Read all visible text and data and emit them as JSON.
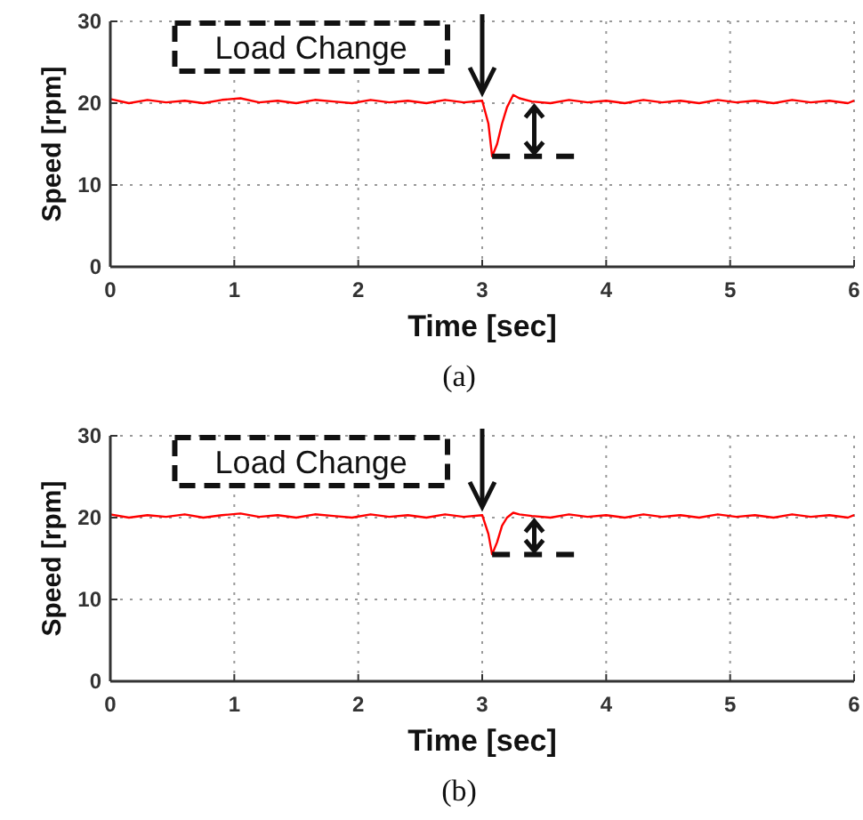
{
  "chart_data": [
    {
      "type": "line",
      "xlabel": "Time [sec]",
      "ylabel": "Speed [rpm]",
      "annotations": [
        "Load Change",
        "(a)"
      ],
      "xlim": [
        0,
        6
      ],
      "xticks": [
        0,
        1,
        2,
        3,
        4,
        5,
        6
      ],
      "ylim": [
        0,
        30
      ],
      "yticks": [
        0,
        10,
        20,
        30
      ],
      "grid": true,
      "series": [
        {
          "color": "#ff0000",
          "x": [
            0,
            0.15,
            0.3,
            0.45,
            0.6,
            0.75,
            0.9,
            1.05,
            1.2,
            1.35,
            1.5,
            1.65,
            1.8,
            1.95,
            2.1,
            2.25,
            2.4,
            2.55,
            2.7,
            2.85,
            3.0,
            3.05,
            3.08,
            3.12,
            3.16,
            3.2,
            3.25,
            3.3,
            3.4,
            3.55,
            3.7,
            3.85,
            4.0,
            4.15,
            4.3,
            4.45,
            4.6,
            4.75,
            4.9,
            5.05,
            5.2,
            5.35,
            5.5,
            5.65,
            5.8,
            5.95,
            6.0
          ],
          "values": [
            20.5,
            20.0,
            20.4,
            20.1,
            20.3,
            20.0,
            20.4,
            20.6,
            20.1,
            20.3,
            20.0,
            20.4,
            20.2,
            20.0,
            20.4,
            20.1,
            20.3,
            20.0,
            20.4,
            20.1,
            20.3,
            17.5,
            13.5,
            15.0,
            17.5,
            19.5,
            21.0,
            20.6,
            20.2,
            20.0,
            20.4,
            20.1,
            20.3,
            20.0,
            20.4,
            20.1,
            20.3,
            20.0,
            20.4,
            20.1,
            20.3,
            20.0,
            20.4,
            20.1,
            20.3,
            20.0,
            20.3
          ]
        }
      ]
    },
    {
      "type": "line",
      "xlabel": "Time [sec]",
      "ylabel": "Speed [rpm]",
      "annotations": [
        "Load Change",
        "(b)"
      ],
      "xlim": [
        0,
        6
      ],
      "xticks": [
        0,
        1,
        2,
        3,
        4,
        5,
        6
      ],
      "ylim": [
        0,
        30
      ],
      "yticks": [
        0,
        10,
        20,
        30
      ],
      "grid": true,
      "series": [
        {
          "color": "#ff0000",
          "x": [
            0,
            0.15,
            0.3,
            0.45,
            0.6,
            0.75,
            0.9,
            1.05,
            1.2,
            1.35,
            1.5,
            1.65,
            1.8,
            1.95,
            2.1,
            2.25,
            2.4,
            2.55,
            2.7,
            2.85,
            3.0,
            3.05,
            3.08,
            3.12,
            3.16,
            3.2,
            3.25,
            3.3,
            3.4,
            3.55,
            3.7,
            3.85,
            4.0,
            4.15,
            4.3,
            4.45,
            4.6,
            4.75,
            4.9,
            5.05,
            5.2,
            5.35,
            5.5,
            5.65,
            5.8,
            5.95,
            6.0
          ],
          "values": [
            20.4,
            20.0,
            20.3,
            20.1,
            20.4,
            20.0,
            20.3,
            20.5,
            20.1,
            20.3,
            20.0,
            20.4,
            20.2,
            20.0,
            20.4,
            20.1,
            20.3,
            20.0,
            20.4,
            20.1,
            20.3,
            18.0,
            15.5,
            17.0,
            19.0,
            20.0,
            20.6,
            20.4,
            20.2,
            20.0,
            20.4,
            20.1,
            20.3,
            20.0,
            20.4,
            20.1,
            20.3,
            20.0,
            20.4,
            20.1,
            20.3,
            20.0,
            20.4,
            20.1,
            20.3,
            20.0,
            20.3
          ]
        }
      ]
    }
  ]
}
